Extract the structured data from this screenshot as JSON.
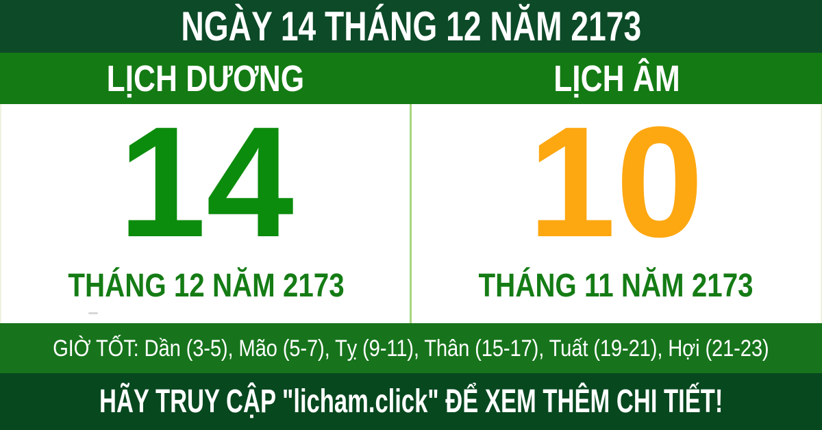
{
  "banner": {
    "text": "NGÀY 14 THÁNG 12 NĂM 2173"
  },
  "calendar": {
    "columns": [
      {
        "key": "solar",
        "header": "LỊCH DƯƠNG",
        "day": "14",
        "month_year": "THÁNG 12 NĂM 2173"
      },
      {
        "key": "lunar",
        "header": "LỊCH ÂM",
        "day": "10",
        "month_year": "THÁNG 11 NĂM 2173"
      }
    ]
  },
  "good_hours": {
    "text": "GIỜ TỐT: Dần (3-5), Mão (5-7), Tỵ (9-11), Thân (15-17), Tuất (19-21), Hợi (21-23)"
  },
  "footer": {
    "text": "HÃY TRUY CẬP \"licham.click\" ĐỂ XEM THÊM CHI TIẾT!"
  },
  "colors": {
    "dark_green_top": "#0c4a28",
    "dark_green_footer": "#07481f",
    "header_green": "#147a14",
    "good_hours_green": "#17741c",
    "solar_day_green": "#0c8c0c",
    "lunar_day_orange": "#fda711",
    "month_label_green": "#157c15",
    "divider_light_green": "#a8d67e",
    "body_white": "#ffffff",
    "text_white": "#ffffff"
  }
}
